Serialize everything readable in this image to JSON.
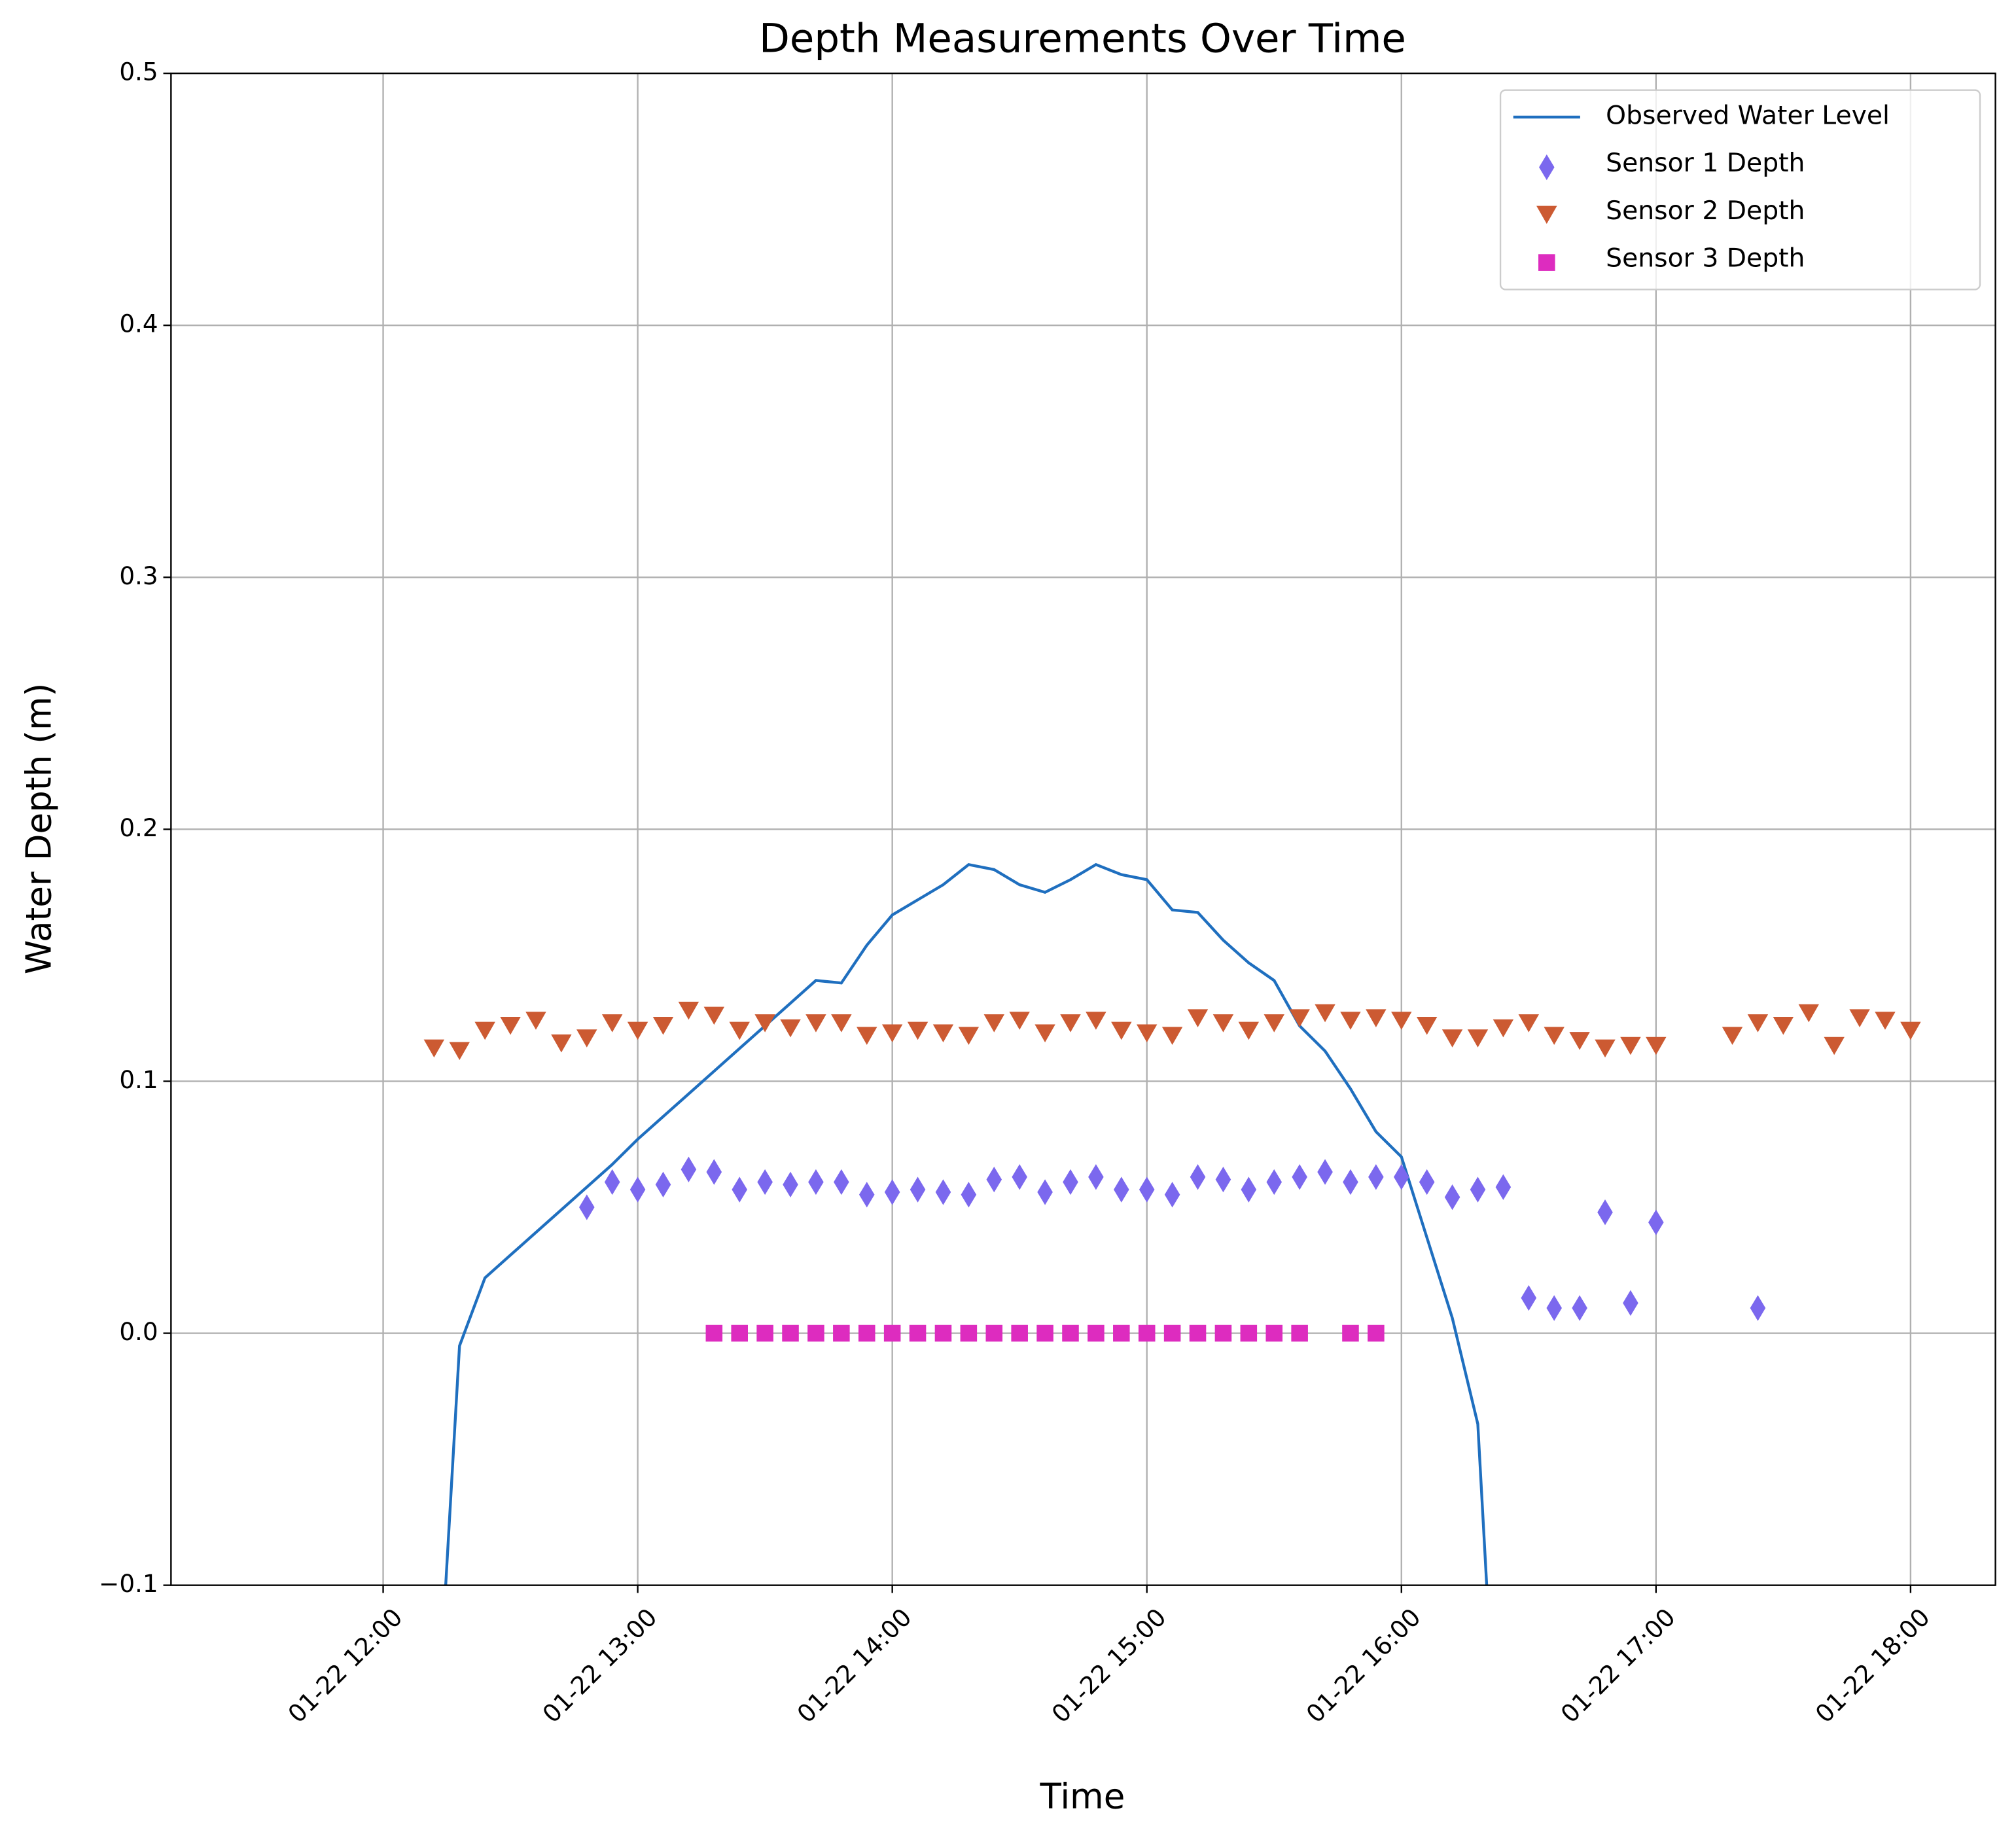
{
  "chart_data": {
    "type": "line",
    "title": "Depth Measurements Over Time",
    "x_label": "Time",
    "y_label": "Water Depth (m)",
    "x": [
      "01-22 12:12",
      "01-22 12:18",
      "01-22 12:24",
      "01-22 12:30",
      "01-22 12:36",
      "01-22 12:42",
      "01-22 12:48",
      "01-22 12:54",
      "01-22 13:00",
      "01-22 13:06",
      "01-22 13:12",
      "01-22 13:18",
      "01-22 13:24",
      "01-22 13:30",
      "01-22 13:36",
      "01-22 13:42",
      "01-22 13:48",
      "01-22 13:54",
      "01-22 14:00",
      "01-22 14:06",
      "01-22 14:12",
      "01-22 14:18",
      "01-22 14:24",
      "01-22 14:30",
      "01-22 14:36",
      "01-22 14:42",
      "01-22 14:48",
      "01-22 14:54",
      "01-22 15:00",
      "01-22 15:06",
      "01-22 15:12",
      "01-22 15:18",
      "01-22 15:24",
      "01-22 15:30",
      "01-22 15:36",
      "01-22 15:42",
      "01-22 15:48",
      "01-22 15:54",
      "01-22 16:00",
      "01-22 16:06",
      "01-22 16:12",
      "01-22 16:18",
      "01-22 16:24",
      "01-22 16:30",
      "01-22 16:36",
      "01-22 16:42",
      "01-22 16:48",
      "01-22 16:54",
      "01-22 17:00",
      "01-22 17:06",
      "01-22 17:12",
      "01-22 17:18",
      "01-22 17:24",
      "01-22 17:30",
      "01-22 17:36",
      "01-22 17:42",
      "01-22 17:48",
      "01-22 17:54",
      "01-22 18:00"
    ],
    "series": [
      {
        "name": "Observed Water Level",
        "type": "line",
        "color": "#1f6fbf",
        "values": [
          -0.18,
          -0.005,
          0.022,
          0.031,
          0.04,
          0.049,
          0.058,
          0.067,
          0.077,
          0.086,
          0.095,
          0.104,
          0.113,
          0.122,
          0.131,
          0.14,
          0.139,
          0.154,
          0.166,
          0.172,
          0.178,
          0.186,
          0.184,
          0.178,
          0.175,
          0.18,
          0.186,
          0.182,
          0.18,
          0.168,
          0.167,
          0.156,
          0.147,
          0.14,
          0.122,
          0.112,
          0.097,
          0.08,
          0.07,
          0.038,
          0.006,
          -0.036,
          -0.219,
          null,
          null,
          null,
          null,
          null,
          null,
          null,
          null,
          null,
          null,
          null,
          null,
          null,
          null,
          null,
          null
        ]
      },
      {
        "name": "Sensor 1 Depth",
        "type": "scatter",
        "marker": "diamond",
        "color": "#7b68ee",
        "values": [
          null,
          null,
          null,
          null,
          null,
          null,
          0.05,
          0.06,
          0.057,
          0.059,
          0.065,
          0.064,
          0.057,
          0.06,
          0.059,
          0.06,
          0.06,
          0.055,
          0.056,
          0.057,
          0.056,
          0.055,
          0.061,
          0.062,
          0.056,
          0.06,
          0.062,
          0.057,
          0.057,
          0.055,
          0.062,
          0.061,
          0.057,
          0.06,
          0.062,
          0.064,
          0.06,
          0.062,
          0.062,
          0.06,
          0.054,
          0.057,
          0.058,
          0.014,
          0.01,
          0.01,
          0.048,
          0.012,
          0.044,
          null,
          null,
          null,
          0.01,
          null,
          null,
          null,
          null,
          null,
          null
        ]
      },
      {
        "name": "Sensor 2 Depth",
        "type": "scatter",
        "marker": "triangle-down",
        "color": "#cc5a32",
        "values": [
          0.113,
          0.112,
          0.12,
          0.122,
          0.124,
          0.115,
          0.117,
          0.123,
          0.12,
          0.122,
          0.128,
          0.126,
          0.12,
          0.123,
          0.121,
          0.123,
          0.123,
          0.118,
          0.119,
          0.12,
          0.119,
          0.118,
          0.123,
          0.124,
          0.119,
          0.123,
          0.124,
          0.12,
          0.119,
          0.118,
          0.125,
          0.123,
          0.12,
          0.123,
          0.125,
          0.127,
          0.124,
          0.125,
          0.124,
          0.122,
          0.117,
          0.117,
          0.121,
          0.123,
          0.118,
          0.116,
          0.113,
          0.114,
          0.114,
          null,
          null,
          0.118,
          0.123,
          0.122,
          0.127,
          0.114,
          0.125,
          0.124,
          0.12
        ]
      },
      {
        "name": "Sensor 3 Depth",
        "type": "scatter",
        "marker": "square",
        "color": "#dd2cbf",
        "values": [
          null,
          null,
          null,
          null,
          null,
          null,
          null,
          null,
          null,
          null,
          null,
          0,
          0,
          0,
          0,
          0,
          0,
          0,
          0,
          0,
          0,
          0,
          0,
          0,
          0,
          0,
          0,
          0,
          0,
          0,
          0,
          0,
          0,
          0,
          0,
          null,
          0,
          0,
          null,
          null,
          null,
          null,
          null,
          null,
          null,
          null,
          null,
          null,
          null,
          null,
          null,
          null,
          null,
          null,
          null,
          null,
          null,
          null,
          null
        ]
      }
    ],
    "xlim": [
      "01-22 11:10",
      "01-22 18:20"
    ],
    "xticks": [
      "01-22 12:00",
      "01-22 13:00",
      "01-22 14:00",
      "01-22 15:00",
      "01-22 16:00",
      "01-22 17:00",
      "01-22 18:00"
    ],
    "ylim": [
      -0.1,
      0.5
    ],
    "yticks": [
      {
        "value": -0.1,
        "label": "−0.1"
      },
      {
        "value": 0,
        "label": "0.0"
      },
      0.1,
      0.2,
      0.3,
      0.4,
      0.5
    ],
    "grid": true,
    "legend": "upper right"
  }
}
